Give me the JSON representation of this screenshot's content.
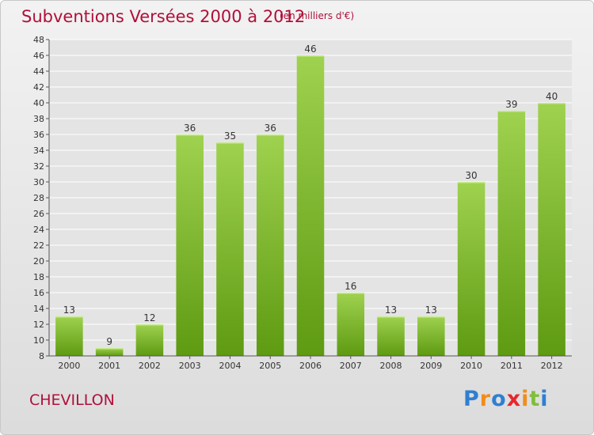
{
  "header": {
    "title": "Subventions Versées 2000 à 2012",
    "subtitle": "(en milliers d'€)"
  },
  "footer": {
    "town": "CHEVILLON",
    "logo": {
      "text": "Proxiti",
      "letters": [
        {
          "ch": "P",
          "color": "#2f7fd1"
        },
        {
          "ch": "r",
          "color": "#f28c1c"
        },
        {
          "ch": "o",
          "color": "#2f7fd1"
        },
        {
          "ch": "x",
          "color": "#e8262c"
        },
        {
          "ch": "i",
          "color": "#f28c1c"
        },
        {
          "ch": "t",
          "color": "#7fbf3a"
        },
        {
          "ch": "i",
          "color": "#2f7fd1"
        }
      ]
    }
  },
  "chart_data": {
    "type": "bar",
    "title": "Subventions Versées 2000 à 2012",
    "subtitle": "(en milliers d'€)",
    "categories": [
      "2000",
      "2001",
      "2002",
      "2003",
      "2004",
      "2005",
      "2006",
      "2007",
      "2008",
      "2009",
      "2010",
      "2011",
      "2012"
    ],
    "values": [
      13,
      9,
      12,
      36,
      35,
      36,
      46,
      16,
      13,
      13,
      30,
      39,
      40
    ],
    "ylim": [
      8,
      48
    ],
    "yticks": [
      8,
      10,
      12,
      14,
      16,
      18,
      20,
      22,
      24,
      26,
      28,
      30,
      32,
      34,
      36,
      38,
      40,
      42,
      44,
      46,
      48
    ],
    "grid": true,
    "data_labels": true,
    "colors": {
      "bar_top": "#9fd24f",
      "bar_bottom": "#5e9a12",
      "grid": "#ffffff",
      "text": "#333333"
    }
  }
}
